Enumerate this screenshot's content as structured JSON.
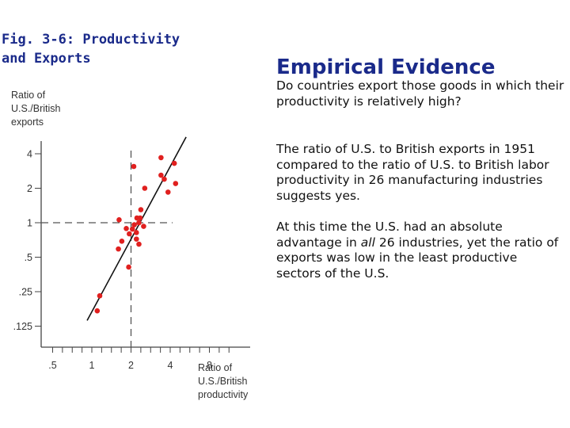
{
  "figure_title": "Fig. 3-6: Productivity and Exports",
  "heading": "Empirical Evidence",
  "paragraphs": [
    "Do countries export those goods in which their productivity is relatively high?",
    "The ratio of U.S. to British exports in 1951 compared to the ratio of U.S. to British labor productivity in 26 manufacturing industries suggests yes."
  ],
  "paragraph3": {
    "before": "At this time the U.S. had an absolute advantage in ",
    "emphasis": "all",
    "after": " 26 industries, yet the ratio of exports was low in the least productive sectors of the U.S."
  },
  "chart_data": {
    "type": "scatter",
    "ylabel_lines": [
      "Ratio of",
      "U.S./British",
      "exports"
    ],
    "xlabel_lines": [
      "Ratio of",
      "U.S./British",
      "productivity"
    ],
    "x_ticks": [
      0.5,
      1,
      2,
      4,
      8
    ],
    "x_tick_labels": [
      ".5",
      "1",
      "2",
      "4",
      "8"
    ],
    "y_ticks": [
      0.125,
      0.25,
      0.5,
      1,
      2,
      4
    ],
    "y_tick_labels": [
      ".125",
      ".25",
      ".5",
      "1",
      "2",
      "4"
    ],
    "log_scale": true,
    "xlim": [
      0.4,
      12
    ],
    "ylim": [
      0.09,
      7
    ],
    "reference_lines": {
      "x": 2,
      "y": 1
    },
    "points": [
      {
        "x": 1.1,
        "y": 0.17
      },
      {
        "x": 1.15,
        "y": 0.23
      },
      {
        "x": 1.6,
        "y": 0.59
      },
      {
        "x": 1.7,
        "y": 0.69
      },
      {
        "x": 1.92,
        "y": 0.41
      },
      {
        "x": 1.62,
        "y": 1.06
      },
      {
        "x": 1.84,
        "y": 0.89
      },
      {
        "x": 1.94,
        "y": 0.8
      },
      {
        "x": 2.05,
        "y": 0.88
      },
      {
        "x": 2.12,
        "y": 0.96
      },
      {
        "x": 2.2,
        "y": 0.82
      },
      {
        "x": 2.22,
        "y": 1.1
      },
      {
        "x": 2.3,
        "y": 1.0
      },
      {
        "x": 2.35,
        "y": 1.1
      },
      {
        "x": 2.38,
        "y": 1.3
      },
      {
        "x": 2.5,
        "y": 0.93
      },
      {
        "x": 2.3,
        "y": 0.65
      },
      {
        "x": 2.2,
        "y": 0.72
      },
      {
        "x": 2.1,
        "y": 3.1
      },
      {
        "x": 2.55,
        "y": 2.0
      },
      {
        "x": 3.4,
        "y": 2.6
      },
      {
        "x": 3.6,
        "y": 2.4
      },
      {
        "x": 3.85,
        "y": 1.85
      },
      {
        "x": 4.4,
        "y": 2.2
      },
      {
        "x": 3.4,
        "y": 3.7
      },
      {
        "x": 4.3,
        "y": 3.3
      }
    ],
    "trend_line": [
      {
        "x": 0.92,
        "y": 0.14
      },
      {
        "x": 5.3,
        "y": 5.6
      }
    ],
    "point_color": "#e0201f",
    "line_color": "#111111",
    "grid": false
  }
}
